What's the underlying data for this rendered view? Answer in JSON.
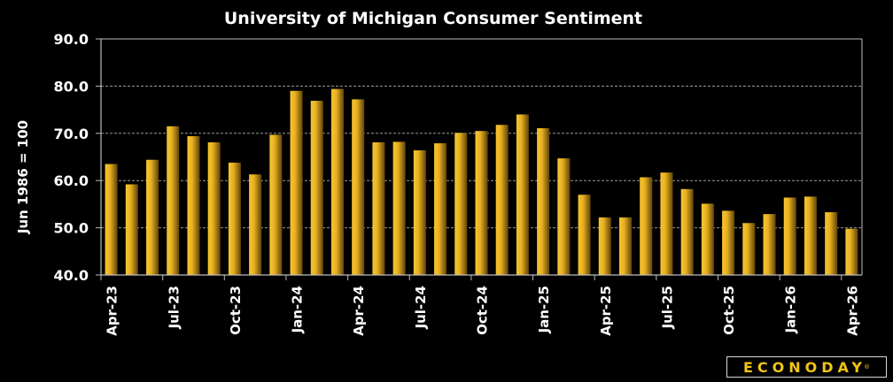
{
  "chart_data": {
    "type": "bar",
    "title": "University of Michigan Consumer Sentiment",
    "xlabel": "",
    "ylabel": "Jun 1986 = 100",
    "ylim": [
      40,
      90
    ],
    "yticks": [
      "40.0",
      "50.0",
      "60.0",
      "70.0",
      "80.0",
      "90.0"
    ],
    "grid": true,
    "categories": [
      "Apr-23",
      "May-23",
      "Jun-23",
      "Jul-23",
      "Aug-23",
      "Sep-23",
      "Oct-23",
      "Nov-23",
      "Dec-23",
      "Jan-24",
      "Feb-24",
      "Mar-24",
      "Apr-24",
      "May-24",
      "Jun-24",
      "Jul-24",
      "Aug-24",
      "Sep-24",
      "Oct-24",
      "Nov-24",
      "Dec-24",
      "Jan-25",
      "Feb-25",
      "Mar-25",
      "Apr-25",
      "May-25",
      "Jun-25",
      "Jul-25",
      "Aug-25",
      "Sep-25",
      "Oct-25",
      "Nov-25",
      "Dec-25",
      "Jan-26",
      "Feb-26",
      "Mar-26",
      "Apr-26"
    ],
    "xtick_labels": [
      "Apr-23",
      "Jul-23",
      "Oct-23",
      "Jan-24",
      "Apr-24",
      "Jul-24",
      "Oct-24",
      "Jan-25",
      "Apr-25",
      "Jul-25",
      "Oct-25",
      "Jan-26",
      "Apr-26"
    ],
    "values": [
      63.5,
      59.2,
      64.4,
      71.5,
      69.4,
      68.1,
      63.8,
      61.3,
      69.7,
      79.0,
      76.9,
      79.4,
      77.2,
      68.1,
      68.2,
      66.4,
      67.9,
      70.1,
      70.5,
      71.8,
      74.0,
      71.1,
      64.7,
      57.0,
      52.2,
      52.2,
      60.7,
      61.7,
      58.2,
      55.1,
      53.6,
      51.0,
      52.9,
      56.4,
      56.6,
      53.3,
      49.8
    ],
    "bar_color_light": "#f8c62c",
    "bar_color_dark": "#5e4408"
  },
  "logo": {
    "text": "ECONODAY",
    "mark": "®"
  }
}
